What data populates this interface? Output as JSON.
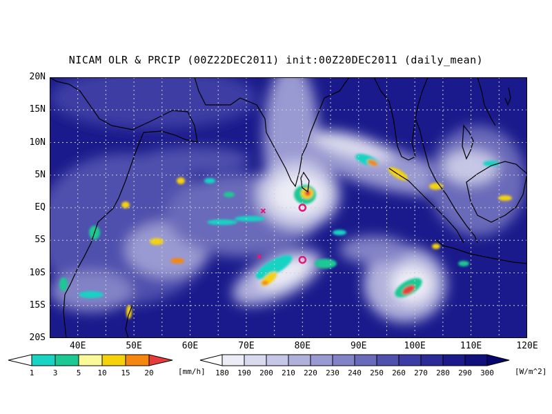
{
  "title": "NICAM OLR & PRCIP (00Z22DEC2011) init:00Z20DEC2011 (daily_mean)",
  "map": {
    "projection": "lat-lon",
    "lon_range": [
      35,
      120
    ],
    "lat_range": [
      -20,
      20
    ],
    "gridlines": "dotted",
    "y_ticks": [
      "20N",
      "15N",
      "10N",
      "5N",
      "EQ",
      "5S",
      "10S",
      "15S",
      "20S"
    ],
    "x_ticks": [
      "40E",
      "50E",
      "60E",
      "70E",
      "80E",
      "90E",
      "100E",
      "110E",
      "120E"
    ],
    "markers": [
      {
        "type": "circle",
        "lon": 80,
        "lat": 0
      },
      {
        "type": "circle",
        "lon": 80,
        "lat": -8
      },
      {
        "type": "cross",
        "lon": 73,
        "lat": -0.5
      },
      {
        "type": "cross",
        "lon": 72.3,
        "lat": -7.5
      }
    ]
  },
  "precip_colorbar": {
    "labels": [
      "1",
      "3",
      "5",
      "10",
      "15",
      "20"
    ],
    "unit": "[mm/h]",
    "colors": [
      "#ffffff",
      "#19d3c4",
      "#1cc894",
      "#fafa9a",
      "#f5d20a",
      "#f5870f",
      "#e63c3c"
    ]
  },
  "olr_colorbar": {
    "labels": [
      "180",
      "190",
      "200",
      "210",
      "220",
      "230",
      "240",
      "250",
      "260",
      "270",
      "280",
      "290",
      "300"
    ],
    "unit": "[W/m^2]",
    "colors": [
      "#ffffff",
      "#ececf6",
      "#dadaee",
      "#c6c6e6",
      "#b0b0dc",
      "#9a9ad2",
      "#8282c6",
      "#6a6aba",
      "#5050ae",
      "#3c3ca4",
      "#2a2a98",
      "#1a1a8c",
      "#0f0f7e",
      "#06066e"
    ]
  }
}
